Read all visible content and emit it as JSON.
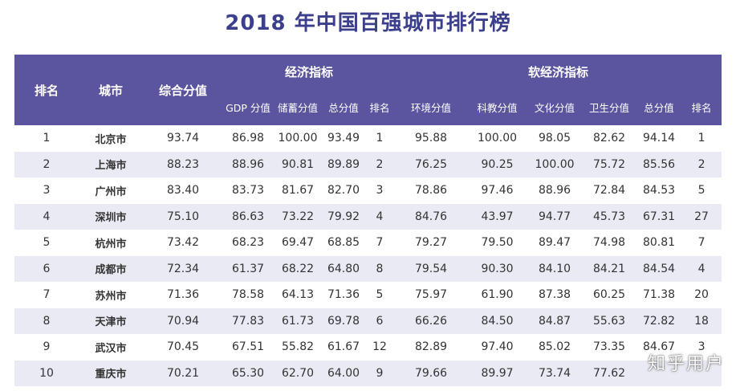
{
  "title": "2018 年中国百强城市排行榜",
  "headers": {
    "rank": "排名",
    "city": "城市",
    "composite": "综合分值",
    "economic_group": "经济指标",
    "soft_group": "软经济指标",
    "economic_sub": [
      "GDP 分值",
      "储蓄分值",
      "总分值",
      "排名"
    ],
    "soft_sub": [
      "环境分值",
      "科教分值",
      "文化分值",
      "卫生分值",
      "总分值",
      "排名"
    ]
  },
  "rows": [
    [
      "1",
      "北京市",
      "93.74",
      "86.98",
      "100.00",
      "93.49",
      "1",
      "95.88",
      "100.00",
      "98.05",
      "82.62",
      "94.14",
      "1"
    ],
    [
      "2",
      "上海市",
      "88.23",
      "88.96",
      "90.81",
      "89.89",
      "2",
      "76.25",
      "90.25",
      "100.00",
      "75.72",
      "85.56",
      "2"
    ],
    [
      "3",
      "广州市",
      "83.40",
      "83.73",
      "81.67",
      "82.70",
      "3",
      "78.86",
      "97.46",
      "88.96",
      "72.84",
      "84.53",
      "5"
    ],
    [
      "4",
      "深圳市",
      "75.10",
      "86.63",
      "73.22",
      "79.92",
      "4",
      "84.76",
      "43.97",
      "94.77",
      "45.73",
      "67.31",
      "27"
    ],
    [
      "5",
      "杭州市",
      "73.42",
      "68.23",
      "69.47",
      "68.85",
      "7",
      "79.27",
      "79.50",
      "89.47",
      "74.98",
      "80.81",
      "7"
    ],
    [
      "6",
      "成都市",
      "72.34",
      "61.37",
      "68.22",
      "64.80",
      "8",
      "79.54",
      "90.30",
      "84.10",
      "84.21",
      "84.54",
      "4"
    ],
    [
      "7",
      "苏州市",
      "71.36",
      "78.58",
      "64.13",
      "71.36",
      "5",
      "75.97",
      "61.90",
      "87.38",
      "60.25",
      "71.38",
      "20"
    ],
    [
      "8",
      "天津市",
      "70.94",
      "77.83",
      "61.73",
      "69.78",
      "6",
      "66.26",
      "84.50",
      "84.87",
      "55.63",
      "72.82",
      "18"
    ],
    [
      "9",
      "武汉市",
      "70.45",
      "67.51",
      "55.82",
      "61.67",
      "12",
      "82.89",
      "97.40",
      "85.02",
      "73.35",
      "84.67",
      "3"
    ],
    [
      "10",
      "重庆市",
      "70.21",
      "65.30",
      "62.70",
      "64.00",
      "9",
      "79.66",
      "89.97",
      "73.74",
      "77.62",
      "",
      ""
    ]
  ],
  "watermark": "知乎用户",
  "colors": {
    "header_bg": "#5a559e",
    "title": "#3c3f8c",
    "stripe": "#e9eaf3"
  }
}
